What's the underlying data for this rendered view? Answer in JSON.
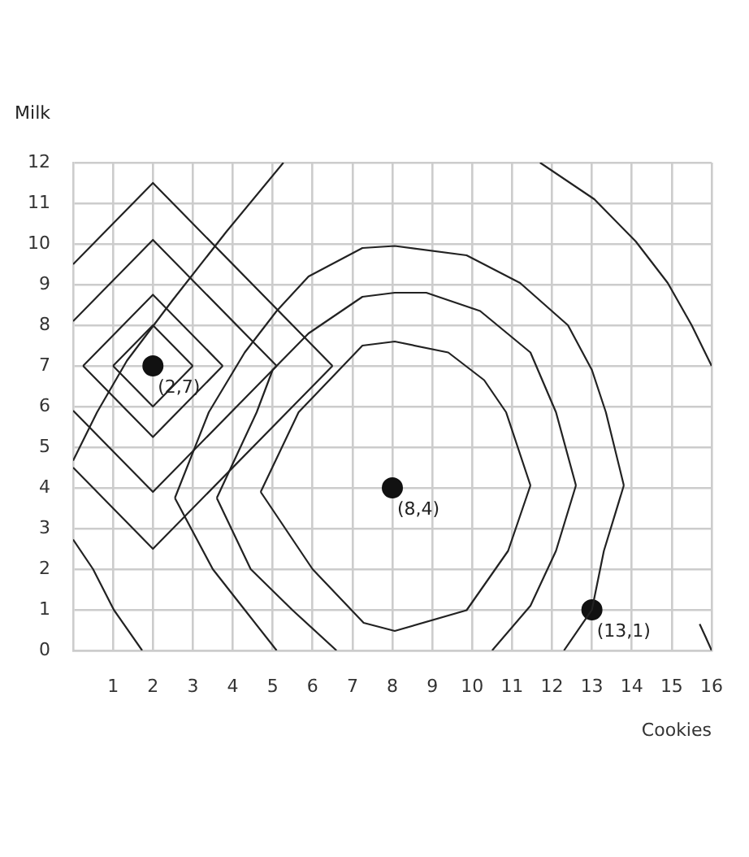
{
  "chart_data": {
    "type": "line",
    "xlabel": "Cookies",
    "ylabel": "Milk",
    "xlim": [
      0,
      16
    ],
    "xticks": [
      1,
      2,
      3,
      4,
      5,
      6,
      7,
      8,
      9,
      10,
      11,
      12,
      13,
      14,
      15,
      16
    ],
    "ylim": [
      0,
      12
    ],
    "yticks": [
      0,
      1,
      2,
      3,
      4,
      5,
      6,
      7,
      8,
      9,
      10,
      11,
      12
    ],
    "grid": true,
    "series": [
      {
        "type": "line",
        "marker": "none",
        "color": "#222222",
        "x": [
          1,
          2,
          3
        ],
        "values": [
          7,
          8,
          7
        ]
      },
      {
        "type": "line",
        "marker": "none",
        "color": "#222222",
        "x": [
          1,
          2,
          3
        ],
        "values": [
          7,
          6,
          7
        ]
      },
      {
        "type": "line",
        "marker": "none",
        "color": "#222222",
        "x": [
          0.25,
          2,
          3.75
        ],
        "values": [
          7,
          8.75,
          7
        ]
      },
      {
        "type": "line",
        "marker": "none",
        "color": "#222222",
        "x": [
          0.25,
          2,
          3.75
        ],
        "values": [
          7,
          5.25,
          7
        ]
      },
      {
        "type": "line",
        "marker": "none",
        "color": "#222222",
        "x": [
          0,
          2,
          5.1
        ],
        "values": [
          8.1,
          10.1,
          7
        ]
      },
      {
        "type": "line",
        "marker": "none",
        "color": "#222222",
        "x": [
          0,
          2,
          5.1
        ],
        "values": [
          5.9,
          3.9,
          7
        ]
      },
      {
        "type": "line",
        "marker": "none",
        "color": "#222222",
        "x": [
          0,
          2,
          6.5
        ],
        "values": [
          9.5,
          11.5,
          7
        ]
      },
      {
        "type": "line",
        "marker": "none",
        "color": "#222222",
        "x": [
          0,
          2,
          6.5
        ],
        "values": [
          4.5,
          2.5,
          7
        ]
      },
      {
        "type": "line",
        "marker": "none",
        "color": "#222222",
        "x": [
          4.7,
          5.65,
          7.25,
          8.06,
          9.4,
          10.3,
          10.85,
          11.46
        ],
        "values": [
          3.9,
          5.86,
          7.5,
          7.6,
          7.33,
          6.65,
          5.86,
          4.06
        ]
      },
      {
        "type": "line",
        "marker": "none",
        "color": "#222222",
        "x": [
          4.7,
          6.0,
          7.28,
          8.06,
          9.86,
          10.9,
          11.46
        ],
        "values": [
          3.9,
          2.0,
          0.68,
          0.48,
          0.99,
          2.45,
          4.06
        ]
      },
      {
        "type": "line",
        "marker": "none",
        "color": "#222222",
        "x": [
          3.6,
          4.6,
          5.0,
          5.9,
          7.25,
          8.06,
          8.85,
          10.2,
          11.46,
          12.1,
          12.6
        ],
        "values": [
          3.75,
          5.86,
          6.9,
          7.8,
          8.7,
          8.8,
          8.8,
          8.35,
          7.33,
          5.86,
          4.06
        ]
      },
      {
        "type": "line",
        "marker": "none",
        "color": "#222222",
        "x": [
          3.6,
          4.45,
          5.5,
          6.6
        ],
        "values": [
          3.75,
          2.0,
          0.99,
          0
        ]
      },
      {
        "type": "line",
        "marker": "none",
        "color": "#222222",
        "x": [
          10.5,
          11.46,
          12.1,
          12.6
        ],
        "values": [
          0,
          1.1,
          2.45,
          4.06
        ]
      },
      {
        "type": "line",
        "marker": "none",
        "color": "#222222",
        "x": [
          2.55,
          3.4,
          4.3,
          5.1,
          5.9,
          7.25,
          8.06,
          9.86,
          11.2,
          12.4,
          13.0,
          13.35,
          13.8
        ],
        "values": [
          3.75,
          5.86,
          7.33,
          8.35,
          9.2,
          9.9,
          9.95,
          9.72,
          9.04,
          8.0,
          6.9,
          5.86,
          4.06
        ]
      },
      {
        "type": "line",
        "marker": "none",
        "color": "#222222",
        "x": [
          2.55,
          3.5,
          4.3,
          5.1
        ],
        "values": [
          3.75,
          2.0,
          1.0,
          0
        ]
      },
      {
        "type": "line",
        "marker": "none",
        "color": "#222222",
        "x": [
          12.3,
          13,
          13.3,
          13.8
        ],
        "values": [
          0,
          1,
          2.45,
          4.06
        ]
      },
      {
        "type": "line",
        "marker": "none",
        "color": "#222222",
        "x": [
          11.7,
          13.06,
          14.1,
          14.9,
          15.5,
          16
        ],
        "values": [
          12,
          11.1,
          10.06,
          9.04,
          8.0,
          7
        ]
      },
      {
        "type": "line",
        "marker": "none",
        "color": "#222222",
        "x": [
          0,
          0.6,
          1.35,
          2.48,
          3.84,
          5.27
        ],
        "values": [
          4.67,
          5.86,
          7.13,
          8.6,
          10.3,
          12
        ]
      },
      {
        "type": "line",
        "marker": "none",
        "color": "#222222",
        "x": [
          0,
          0.5,
          1.02,
          1.73
        ],
        "values": [
          2.73,
          2.0,
          1.0,
          0
        ]
      },
      {
        "type": "line",
        "marker": "none",
        "color": "#222222",
        "x": [
          15.7,
          15.85,
          16
        ],
        "values": [
          0.65,
          0.33,
          0
        ]
      },
      {
        "type": "scatter",
        "marker": "circle",
        "color": "#111111",
        "x": [
          2,
          8,
          13
        ],
        "values": [
          7,
          4,
          1
        ]
      }
    ],
    "annotations": [
      {
        "text": "(2,7)",
        "x": 2,
        "y": 7
      },
      {
        "text": "(8,4)",
        "x": 8,
        "y": 4
      },
      {
        "text": "(13,1)",
        "x": 13,
        "y": 1
      }
    ]
  }
}
